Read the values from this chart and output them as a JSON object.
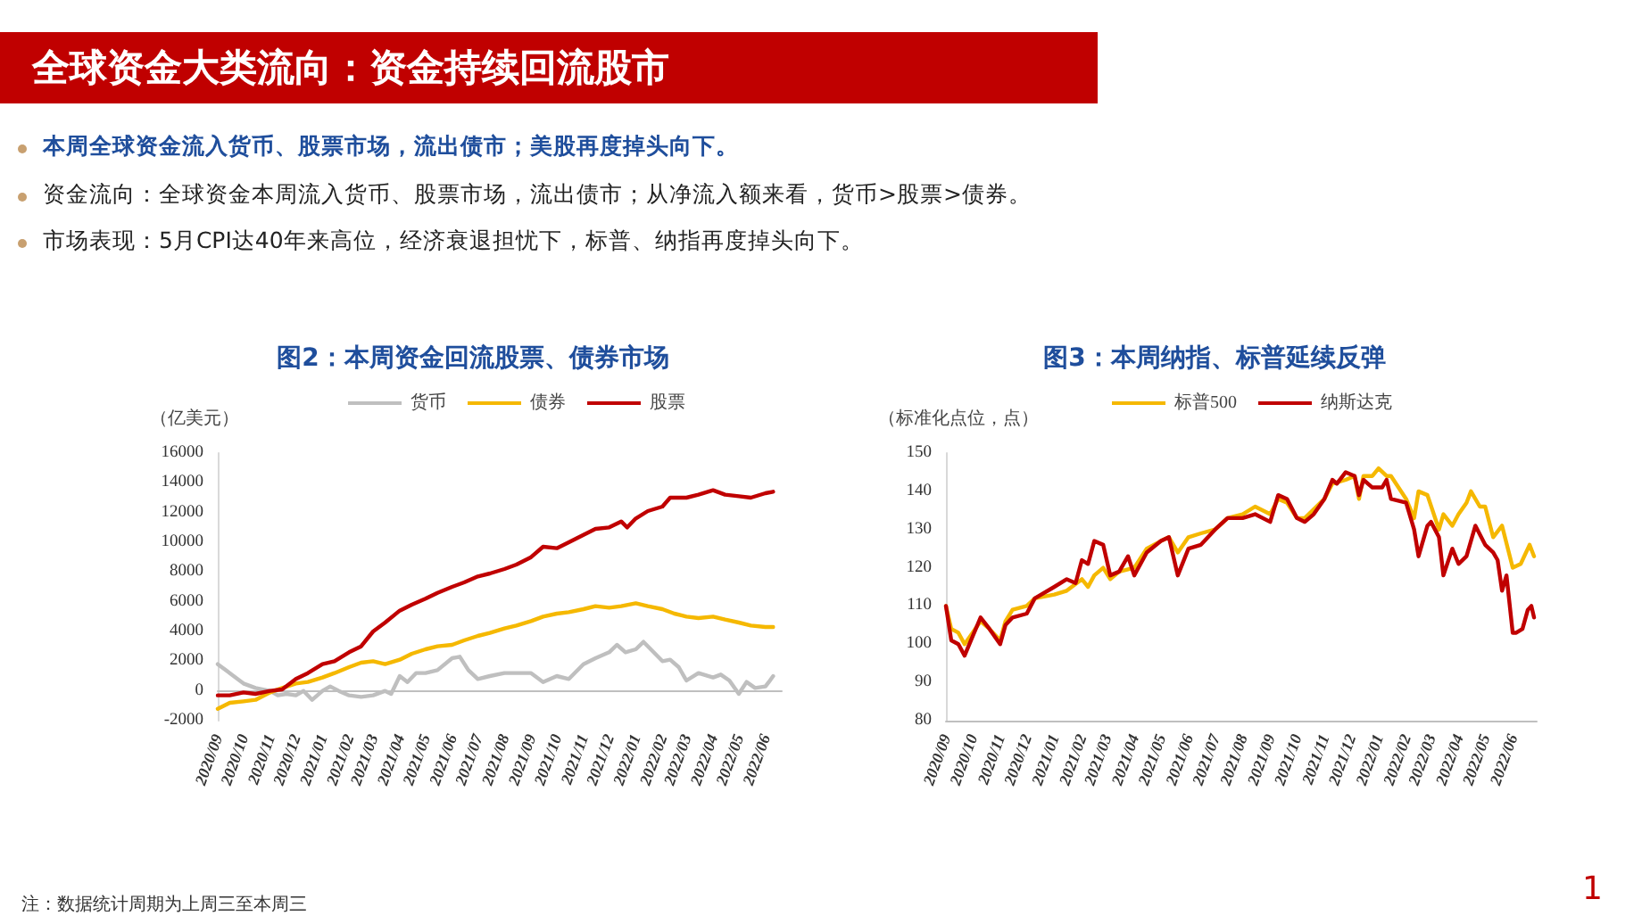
{
  "chart_data": [
    {
      "type": "line",
      "title": "图2：本周资金回流股票、债券市场",
      "ylabel": "（亿美元）",
      "annotations": [
        "全球资金大类流向：资金持续回流股市",
        "本周全球资金流入货币、股票市场，流出债市；美股再度掉头向下。",
        "资金流向：全球资金本周流入货币、股票市场，流出债市；从净流入额来看，货币>股票>债券。",
        "市场表现：5月CPI达40年来高位，经济衰退担忧下，标普、纳指再度掉头向下。",
        "注：数据统计周期为上周三至本周三",
        "1"
      ],
      "xlim": [
        "2020-09-01",
        "2022-06-20"
      ],
      "xticks": [
        {
          "value": "2020-09-01",
          "label": "2020/09"
        },
        {
          "value": "2020-10-01",
          "label": "2020/10"
        },
        {
          "value": "2020-11-01",
          "label": "2020/11"
        },
        {
          "value": "2020-12-01",
          "label": "2020/12"
        },
        {
          "value": "2021-01-01",
          "label": "2021/01"
        },
        {
          "value": "2021-02-01",
          "label": "2021/02"
        },
        {
          "value": "2021-03-01",
          "label": "2021/03"
        },
        {
          "value": "2021-04-01",
          "label": "2021/04"
        },
        {
          "value": "2021-05-01",
          "label": "2021/05"
        },
        {
          "value": "2021-06-01",
          "label": "2021/06"
        },
        {
          "value": "2021-07-01",
          "label": "2021/07"
        },
        {
          "value": "2021-08-01",
          "label": "2021/08"
        },
        {
          "value": "2021-09-01",
          "label": "2021/09"
        },
        {
          "value": "2021-10-01",
          "label": "2021/10"
        },
        {
          "value": "2021-11-01",
          "label": "2021/11"
        },
        {
          "value": "2021-12-01",
          "label": "2021/12"
        },
        {
          "value": "2022-01-01",
          "label": "2022/01"
        },
        {
          "value": "2022-02-01",
          "label": "2022/02"
        },
        {
          "value": "2022-03-01",
          "label": "2022/03"
        },
        {
          "value": "2022-04-01",
          "label": "2022/04"
        },
        {
          "value": "2022-05-01",
          "label": "2022/05"
        },
        {
          "value": "2022-06-01",
          "label": "2022/06"
        }
      ],
      "ylim": [
        -2000,
        16000
      ],
      "yticks": [
        -2000,
        0,
        2000,
        4000,
        6000,
        8000,
        10000,
        12000,
        14000,
        16000
      ],
      "grid": false,
      "legend": "top",
      "marker": "none",
      "line_style": "solid",
      "series": [
        {
          "name": "货币",
          "color": "#bfbfbf",
          "x": [
            "2020-09-01",
            "2020-09-15",
            "2020-10-01",
            "2020-10-15",
            "2020-11-01",
            "2020-11-10",
            "2020-11-20",
            "2020-12-01",
            "2020-12-10",
            "2020-12-20",
            "2021-01-01",
            "2021-01-10",
            "2021-01-20",
            "2021-02-01",
            "2021-02-15",
            "2021-03-01",
            "2021-03-15",
            "2021-03-22",
            "2021-04-01",
            "2021-04-10",
            "2021-04-20",
            "2021-05-01",
            "2021-05-15",
            "2021-06-01",
            "2021-06-10",
            "2021-06-20",
            "2021-07-01",
            "2021-07-15",
            "2021-08-01",
            "2021-08-15",
            "2021-09-01",
            "2021-09-15",
            "2021-10-01",
            "2021-10-15",
            "2021-11-01",
            "2021-11-15",
            "2021-12-01",
            "2021-12-10",
            "2021-12-20",
            "2022-01-01",
            "2022-01-10",
            "2022-02-01",
            "2022-02-10",
            "2022-02-20",
            "2022-03-01",
            "2022-03-15",
            "2022-04-01",
            "2022-04-10",
            "2022-04-20",
            "2022-05-01",
            "2022-05-10",
            "2022-05-20",
            "2022-06-01",
            "2022-06-05",
            "2022-06-10"
          ],
          "values": [
            1800,
            1200,
            500,
            200,
            0,
            -300,
            -200,
            -300,
            0,
            -600,
            0,
            300,
            0,
            -300,
            -400,
            -300,
            0,
            -200,
            1000,
            600,
            1200,
            1200,
            1400,
            2200,
            2300,
            1400,
            800,
            1000,
            1200,
            1200,
            1200,
            600,
            1000,
            800,
            1800,
            2200,
            2600,
            3100,
            2600,
            2800,
            3300,
            2000,
            2100,
            1600,
            700,
            1200,
            900,
            1100,
            700,
            -200,
            600,
            200,
            300,
            600,
            1000
          ]
        },
        {
          "name": "债券",
          "color": "#f5b800",
          "x": [
            "2020-09-01",
            "2020-09-15",
            "2020-10-01",
            "2020-10-15",
            "2020-11-01",
            "2020-11-15",
            "2020-12-01",
            "2020-12-15",
            "2021-01-01",
            "2021-01-15",
            "2021-02-01",
            "2021-02-15",
            "2021-03-01",
            "2021-03-15",
            "2021-04-01",
            "2021-04-15",
            "2021-05-01",
            "2021-05-15",
            "2021-06-01",
            "2021-06-15",
            "2021-07-01",
            "2021-07-15",
            "2021-08-01",
            "2021-08-15",
            "2021-09-01",
            "2021-09-15",
            "2021-10-01",
            "2021-10-15",
            "2021-11-01",
            "2021-11-15",
            "2021-12-01",
            "2021-12-15",
            "2022-01-01",
            "2022-01-15",
            "2022-02-01",
            "2022-02-15",
            "2022-03-01",
            "2022-03-15",
            "2022-04-01",
            "2022-04-15",
            "2022-05-01",
            "2022-05-15",
            "2022-06-01",
            "2022-06-10"
          ],
          "values": [
            -1200,
            -800,
            -700,
            -600,
            -100,
            200,
            500,
            600,
            900,
            1200,
            1600,
            1900,
            2000,
            1800,
            2100,
            2500,
            2800,
            3000,
            3100,
            3400,
            3700,
            3900,
            4200,
            4400,
            4700,
            5000,
            5200,
            5300,
            5500,
            5700,
            5600,
            5700,
            5900,
            5700,
            5500,
            5200,
            5000,
            4900,
            5000,
            4800,
            4600,
            4400,
            4300,
            4300
          ]
        },
        {
          "name": "股票",
          "color": "#c00000",
          "x": [
            "2020-09-01",
            "2020-09-15",
            "2020-10-01",
            "2020-10-15",
            "2020-11-01",
            "2020-11-15",
            "2020-12-01",
            "2020-12-15",
            "2021-01-01",
            "2021-01-15",
            "2021-02-01",
            "2021-02-15",
            "2021-03-01",
            "2021-03-15",
            "2021-04-01",
            "2021-04-15",
            "2021-05-01",
            "2021-05-15",
            "2021-06-01",
            "2021-06-15",
            "2021-07-01",
            "2021-07-15",
            "2021-08-01",
            "2021-08-15",
            "2021-09-01",
            "2021-09-15",
            "2021-10-01",
            "2021-10-15",
            "2021-11-01",
            "2021-11-15",
            "2021-12-01",
            "2021-12-15",
            "2021-12-22",
            "2022-01-01",
            "2022-01-15",
            "2022-02-01",
            "2022-02-10",
            "2022-03-01",
            "2022-03-15",
            "2022-04-01",
            "2022-04-15",
            "2022-05-01",
            "2022-05-15",
            "2022-06-01",
            "2022-06-10"
          ],
          "values": [
            -300,
            -300,
            -100,
            -200,
            0,
            100,
            800,
            1200,
            1800,
            2000,
            2600,
            3000,
            4000,
            4600,
            5400,
            5800,
            6200,
            6600,
            7000,
            7300,
            7700,
            7900,
            8200,
            8500,
            9000,
            9700,
            9600,
            10000,
            10500,
            10900,
            11000,
            11400,
            11000,
            11600,
            12100,
            12400,
            13000,
            13000,
            13200,
            13500,
            13200,
            13100,
            13000,
            13300,
            13400
          ]
        }
      ]
    },
    {
      "type": "line",
      "title": "图3：本周纳指、标普延续反弹",
      "ylabel": "（标准化点位，点）",
      "xlim": [
        "2020-09-01",
        "2022-06-28"
      ],
      "xticks": [
        {
          "value": "2020-09-01",
          "label": "2020/09"
        },
        {
          "value": "2020-10-01",
          "label": "2020/10"
        },
        {
          "value": "2020-11-01",
          "label": "2020/11"
        },
        {
          "value": "2020-12-01",
          "label": "2020/12"
        },
        {
          "value": "2021-01-01",
          "label": "2021/01"
        },
        {
          "value": "2021-02-01",
          "label": "2021/02"
        },
        {
          "value": "2021-03-01",
          "label": "2021/03"
        },
        {
          "value": "2021-04-01",
          "label": "2021/04"
        },
        {
          "value": "2021-05-01",
          "label": "2021/05"
        },
        {
          "value": "2021-06-01",
          "label": "2021/06"
        },
        {
          "value": "2021-07-01",
          "label": "2021/07"
        },
        {
          "value": "2021-08-01",
          "label": "2021/08"
        },
        {
          "value": "2021-09-01",
          "label": "2021/09"
        },
        {
          "value": "2021-10-01",
          "label": "2021/10"
        },
        {
          "value": "2021-11-01",
          "label": "2021/11"
        },
        {
          "value": "2021-12-01",
          "label": "2021/12"
        },
        {
          "value": "2022-01-01",
          "label": "2022/01"
        },
        {
          "value": "2022-02-01",
          "label": "2022/02"
        },
        {
          "value": "2022-03-01",
          "label": "2022/03"
        },
        {
          "value": "2022-04-01",
          "label": "2022/04"
        },
        {
          "value": "2022-05-01",
          "label": "2022/05"
        },
        {
          "value": "2022-06-01",
          "label": "2022/06"
        }
      ],
      "ylim": [
        80,
        150
      ],
      "yticks": [
        80,
        90,
        100,
        110,
        120,
        130,
        140,
        150
      ],
      "grid": false,
      "legend": "top",
      "marker": "none",
      "line_style": "solid",
      "series": [
        {
          "name": "标普500",
          "color": "#f5b800",
          "x": [
            "2020-09-01",
            "2020-09-07",
            "2020-09-15",
            "2020-09-22",
            "2020-10-01",
            "2020-10-10",
            "2020-10-20",
            "2020-11-01",
            "2020-11-07",
            "2020-11-15",
            "2020-12-01",
            "2020-12-10",
            "2021-01-01",
            "2021-01-15",
            "2021-02-01",
            "2021-02-08",
            "2021-02-15",
            "2021-02-25",
            "2021-03-05",
            "2021-03-15",
            "2021-04-01",
            "2021-04-15",
            "2021-05-01",
            "2021-05-10",
            "2021-05-20",
            "2021-06-01",
            "2021-06-15",
            "2021-07-01",
            "2021-07-15",
            "2021-08-01",
            "2021-08-15",
            "2021-09-01",
            "2021-09-10",
            "2021-09-20",
            "2021-10-01",
            "2021-10-10",
            "2021-11-01",
            "2021-11-10",
            "2021-11-25",
            "2021-12-05",
            "2021-12-10",
            "2021-12-15",
            "2021-12-25",
            "2022-01-01",
            "2022-01-10",
            "2022-01-15",
            "2022-02-01",
            "2022-02-10",
            "2022-02-15",
            "2022-02-25",
            "2022-03-10",
            "2022-03-15",
            "2022-03-25",
            "2022-04-01",
            "2022-04-10",
            "2022-04-15",
            "2022-04-25",
            "2022-05-01",
            "2022-05-10",
            "2022-05-20",
            "2022-06-01",
            "2022-06-10",
            "2022-06-20",
            "2022-06-25"
          ],
          "values": [
            110,
            104,
            103,
            100,
            103,
            106,
            104,
            101,
            106,
            109,
            110,
            112,
            113,
            114,
            117,
            115,
            118,
            120,
            117,
            119,
            120,
            125,
            127,
            128,
            124,
            128,
            129,
            130,
            133,
            134,
            136,
            134,
            138,
            137,
            133,
            133,
            138,
            142,
            143,
            144,
            138,
            144,
            144,
            146,
            144,
            144,
            138,
            133,
            140,
            139,
            130,
            134,
            131,
            134,
            137,
            140,
            136,
            136,
            128,
            131,
            120,
            121,
            126,
            123
          ]
        },
        {
          "name": "纳斯达克",
          "color": "#c00000",
          "x": [
            "2020-09-01",
            "2020-09-07",
            "2020-09-15",
            "2020-09-22",
            "2020-10-01",
            "2020-10-10",
            "2020-10-20",
            "2020-11-01",
            "2020-11-07",
            "2020-11-15",
            "2020-12-01",
            "2020-12-10",
            "2021-01-01",
            "2021-01-15",
            "2021-01-25",
            "2021-02-01",
            "2021-02-08",
            "2021-02-15",
            "2021-02-25",
            "2021-03-05",
            "2021-03-15",
            "2021-03-25",
            "2021-04-01",
            "2021-04-15",
            "2021-05-01",
            "2021-05-10",
            "2021-05-20",
            "2021-06-01",
            "2021-06-15",
            "2021-07-01",
            "2021-07-15",
            "2021-08-01",
            "2021-08-15",
            "2021-09-01",
            "2021-09-10",
            "2021-09-20",
            "2021-10-01",
            "2021-10-10",
            "2021-10-20",
            "2021-11-01",
            "2021-11-10",
            "2021-11-15",
            "2021-11-25",
            "2021-12-05",
            "2021-12-10",
            "2021-12-15",
            "2021-12-25",
            "2022-01-05",
            "2022-01-10",
            "2022-01-15",
            "2022-02-01",
            "2022-02-10",
            "2022-02-15",
            "2022-02-25",
            "2022-03-01",
            "2022-03-10",
            "2022-03-15",
            "2022-03-25",
            "2022-04-01",
            "2022-04-10",
            "2022-04-20",
            "2022-05-01",
            "2022-05-10",
            "2022-05-15",
            "2022-05-20",
            "2022-05-25",
            "2022-06-01",
            "2022-06-05",
            "2022-06-12",
            "2022-06-18",
            "2022-06-22",
            "2022-06-25"
          ],
          "values": [
            110,
            101,
            100,
            97,
            102,
            107,
            104,
            100,
            105,
            107,
            108,
            112,
            115,
            117,
            116,
            122,
            121,
            127,
            126,
            118,
            119,
            123,
            118,
            124,
            127,
            128,
            118,
            125,
            126,
            130,
            133,
            133,
            134,
            132,
            139,
            138,
            133,
            132,
            134,
            138,
            143,
            142,
            145,
            144,
            139,
            143,
            141,
            141,
            143,
            138,
            137,
            130,
            123,
            131,
            132,
            128,
            118,
            125,
            121,
            123,
            131,
            126,
            124,
            122,
            114,
            118,
            103,
            103,
            104,
            109,
            110,
            107
          ]
        }
      ]
    }
  ]
}
